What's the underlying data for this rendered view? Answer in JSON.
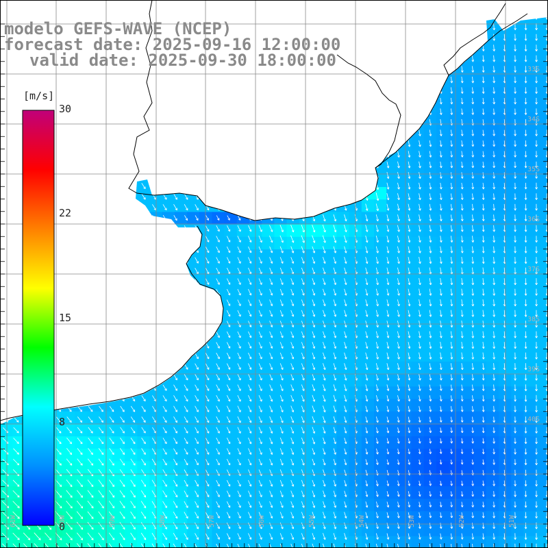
{
  "title": {
    "line1": "modelo GEFS-WAVE (NCEP)",
    "line2": "forecast date: 2025-09-16 12:00:00",
    "line3": "valid date: 2025-09-30 18:00:00"
  },
  "colorbar": {
    "unit": "[m/s]",
    "ticks": [
      "30",
      "22",
      "15",
      "8",
      "0"
    ],
    "min": 0,
    "max": 30,
    "colors": [
      "#0000ff",
      "#0090ff",
      "#00ffff",
      "#00ff00",
      "#ffff00",
      "#ff8000",
      "#ff0000",
      "#c0007a"
    ]
  },
  "map": {
    "variable": "wind speed and direction",
    "lat_labels": [
      "33S",
      "34S",
      "35S",
      "36S",
      "37S",
      "38S",
      "39S",
      "40S"
    ],
    "lon_labels": [
      "61W",
      "60W",
      "59W",
      "58W",
      "57W",
      "56W",
      "55W",
      "54W",
      "53W",
      "52W",
      "51W"
    ],
    "colors": {
      "land": "#ffffff",
      "grid": "#888888",
      "coast": "#000000",
      "arrow": "#ffffff"
    }
  }
}
